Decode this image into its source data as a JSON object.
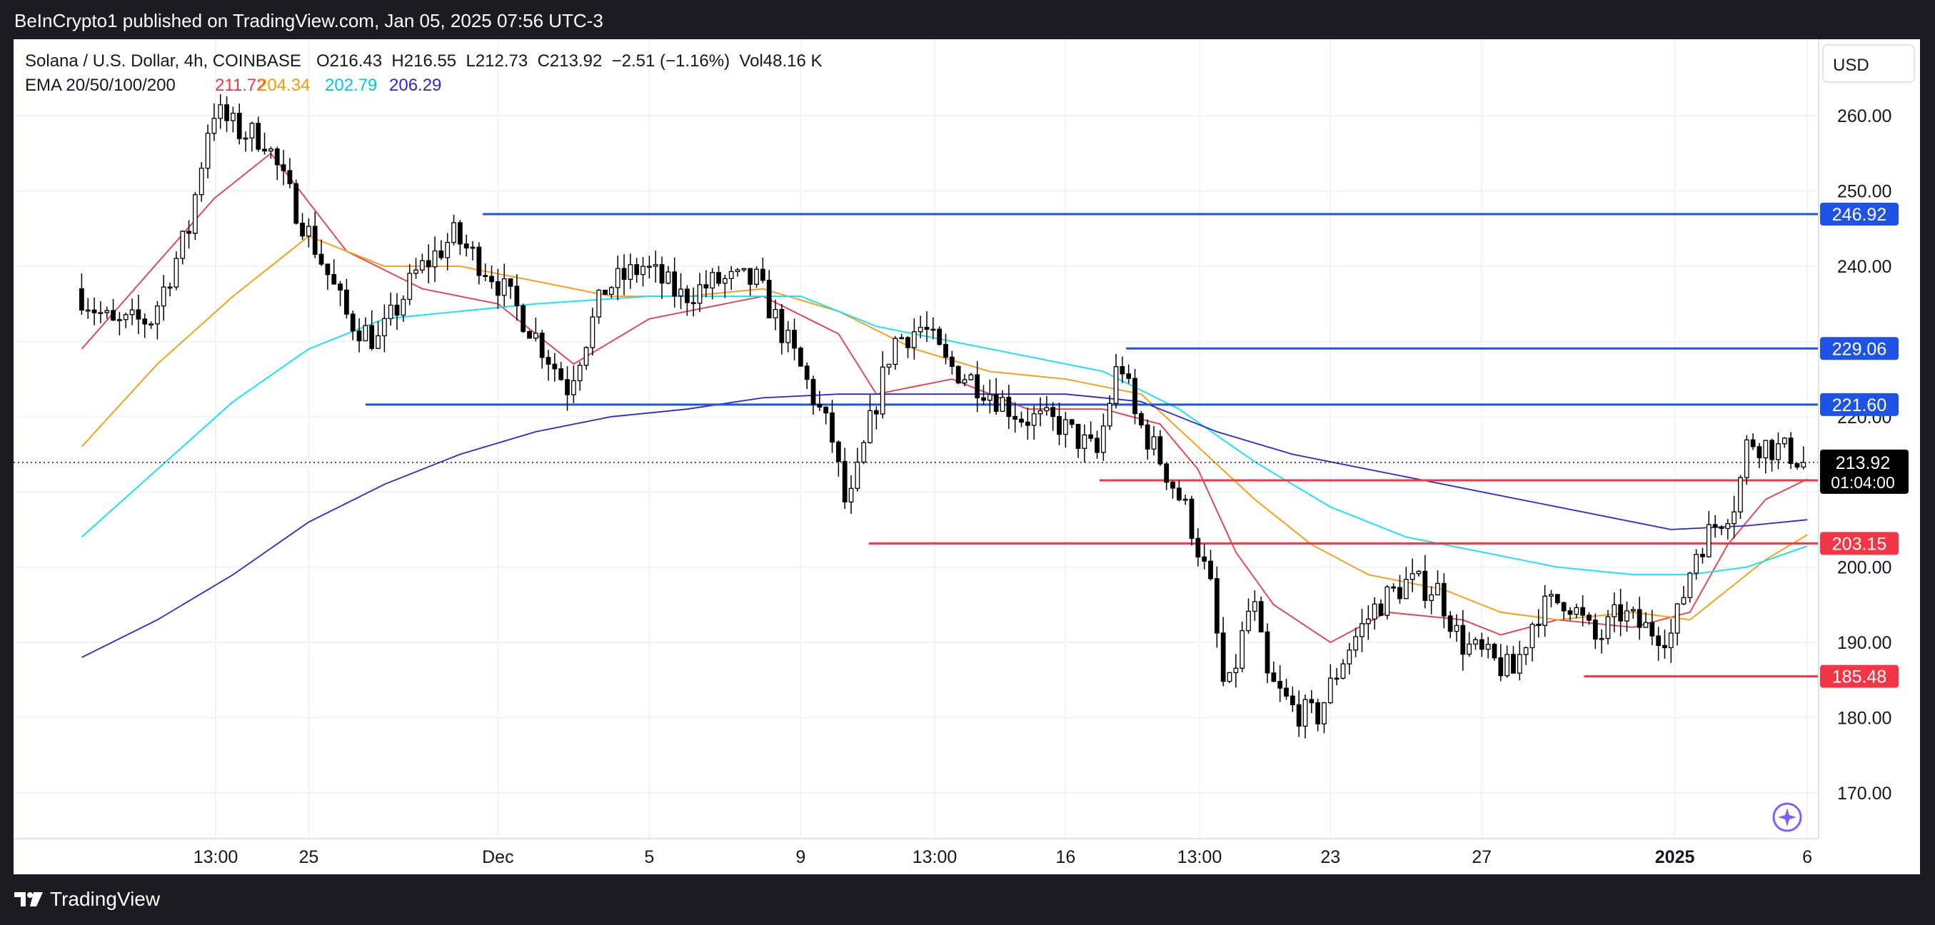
{
  "header": {
    "published_line": "BeInCrypto1 published on TradingView.com, Jan 05, 2025 07:56 UTC-3"
  },
  "legend": {
    "symbol": "Solana / U.S. Dollar, 4h, COINBASE",
    "ohlc": "O216.43  H216.55  L212.73  C213.92  −2.51 (−1.16%)  Vol48.16 K",
    "ema_label": "EMA 20/50/100/200",
    "ema_values": [
      {
        "value": "211.72",
        "color": "#f23645"
      },
      {
        "value": "204.34",
        "color": "#ff9800"
      },
      {
        "value": "202.79",
        "color": "#00e5ff"
      },
      {
        "value": "206.29",
        "color": "#2b26d9"
      }
    ]
  },
  "currency_button": "USD",
  "price_badge": {
    "price": "213.92",
    "countdown": "01:04:00"
  },
  "footer": {
    "brand": "TradingView"
  },
  "colors": {
    "up": "#ffffff",
    "down": "#000000",
    "candle_outline": "#000000",
    "resistance": "#1e53e5",
    "support": "#f23645",
    "ema20": "#f23645",
    "ema50": "#ff9800",
    "ema100": "#00e5ff",
    "ema200": "#2b26d9",
    "grid": "#f0f3fa",
    "axis_text": "#131722",
    "badge_bg": "#000000"
  },
  "chart_data": {
    "type": "candlestick",
    "title": "Solana / U.S. Dollar, 4h, COINBASE",
    "timeframe": "4h",
    "ylim": [
      166,
      268
    ],
    "y_ticks": [
      170,
      180,
      190,
      200,
      210,
      220,
      230,
      240,
      250,
      260
    ],
    "y_tick_labels": [
      "170.00",
      "180.00",
      "190.00",
      "200.00",
      "",
      "220.00",
      "",
      "240.00",
      "250.00",
      "260.00"
    ],
    "x_range_days": [
      0,
      42.1
    ],
    "x_ticks": [
      {
        "label": "13:00",
        "day": 3.54,
        "bold": false
      },
      {
        "label": "25",
        "day": 6.0,
        "bold": false
      },
      {
        "label": "Dec",
        "day": 11.0,
        "bold": false
      },
      {
        "label": "5",
        "day": 15.0,
        "bold": false
      },
      {
        "label": "9",
        "day": 19.0,
        "bold": false
      },
      {
        "label": "13:00",
        "day": 22.54,
        "bold": false
      },
      {
        "label": "16",
        "day": 26.0,
        "bold": false
      },
      {
        "label": "13:00",
        "day": 29.54,
        "bold": false
      },
      {
        "label": "23",
        "day": 33.0,
        "bold": false
      },
      {
        "label": "27",
        "day": 37.0,
        "bold": false
      },
      {
        "label": "2025",
        "day": 42.1,
        "bold": true
      },
      {
        "label": "6",
        "day": 45.6,
        "bold": false
      }
    ],
    "key_points": [
      {
        "day": 0.0,
        "price": 237
      },
      {
        "day": 1.0,
        "price": 232
      },
      {
        "day": 2.0,
        "price": 233
      },
      {
        "day": 3.0,
        "price": 245
      },
      {
        "day": 3.6,
        "price": 261
      },
      {
        "day": 4.3,
        "price": 258
      },
      {
        "day": 5.0,
        "price": 257
      },
      {
        "day": 5.6,
        "price": 250
      },
      {
        "day": 6.3,
        "price": 243
      },
      {
        "day": 7.2,
        "price": 233
      },
      {
        "day": 8.0,
        "price": 230
      },
      {
        "day": 9.0,
        "price": 239
      },
      {
        "day": 10.0,
        "price": 244
      },
      {
        "day": 11.0,
        "price": 239
      },
      {
        "day": 12.0,
        "price": 232
      },
      {
        "day": 13.0,
        "price": 224
      },
      {
        "day": 14.0,
        "price": 237
      },
      {
        "day": 15.0,
        "price": 240
      },
      {
        "day": 16.0,
        "price": 236
      },
      {
        "day": 17.0,
        "price": 238
      },
      {
        "day": 18.0,
        "price": 238
      },
      {
        "day": 19.2,
        "price": 226
      },
      {
        "day": 20.0,
        "price": 217
      },
      {
        "day": 20.4,
        "price": 207
      },
      {
        "day": 21.0,
        "price": 219
      },
      {
        "day": 21.6,
        "price": 230
      },
      {
        "day": 22.4,
        "price": 232
      },
      {
        "day": 23.0,
        "price": 227
      },
      {
        "day": 24.0,
        "price": 224
      },
      {
        "day": 25.0,
        "price": 220
      },
      {
        "day": 26.0,
        "price": 219
      },
      {
        "day": 27.0,
        "price": 215
      },
      {
        "day": 27.6,
        "price": 228
      },
      {
        "day": 28.0,
        "price": 220
      },
      {
        "day": 28.6,
        "price": 215
      },
      {
        "day": 29.4,
        "price": 207
      },
      {
        "day": 30.0,
        "price": 197
      },
      {
        "day": 30.4,
        "price": 182
      },
      {
        "day": 31.1,
        "price": 196
      },
      {
        "day": 31.5,
        "price": 185
      },
      {
        "day": 32.2,
        "price": 181
      },
      {
        "day": 32.8,
        "price": 180
      },
      {
        "day": 33.6,
        "price": 189
      },
      {
        "day": 34.4,
        "price": 195
      },
      {
        "day": 35.2,
        "price": 198
      },
      {
        "day": 36.0,
        "price": 197
      },
      {
        "day": 36.6,
        "price": 190
      },
      {
        "day": 37.6,
        "price": 187
      },
      {
        "day": 38.0,
        "price": 186
      },
      {
        "day": 38.6,
        "price": 194
      },
      {
        "day": 39.4,
        "price": 196
      },
      {
        "day": 40.2,
        "price": 190
      },
      {
        "day": 40.8,
        "price": 194
      },
      {
        "day": 41.4,
        "price": 192
      },
      {
        "day": 42.2,
        "price": 191
      },
      {
        "day": 42.8,
        "price": 202
      },
      {
        "day": 43.4,
        "price": 206
      },
      {
        "day": 43.9,
        "price": 209
      },
      {
        "day": 44.2,
        "price": 217
      },
      {
        "day": 44.8,
        "price": 216
      },
      {
        "day": 45.4,
        "price": 215
      },
      {
        "day": 45.6,
        "price": 214
      }
    ],
    "ema_curves": [
      {
        "name": "EMA 20",
        "color": "#f23645",
        "points": [
          [
            0.0,
            229
          ],
          [
            3.5,
            249
          ],
          [
            5.0,
            255
          ],
          [
            7.0,
            242
          ],
          [
            9.0,
            237
          ],
          [
            11.0,
            235
          ],
          [
            13.0,
            227
          ],
          [
            15.0,
            233
          ],
          [
            18.0,
            236
          ],
          [
            20.0,
            231
          ],
          [
            21.0,
            223
          ],
          [
            23.0,
            225
          ],
          [
            25.0,
            221
          ],
          [
            27.0,
            221
          ],
          [
            28.5,
            219
          ],
          [
            29.5,
            213
          ],
          [
            30.5,
            202
          ],
          [
            31.5,
            195
          ],
          [
            33.0,
            190
          ],
          [
            34.5,
            194
          ],
          [
            36.5,
            193
          ],
          [
            37.5,
            191
          ],
          [
            39.0,
            193
          ],
          [
            41.0,
            192
          ],
          [
            42.5,
            194
          ],
          [
            43.5,
            203
          ],
          [
            44.5,
            209
          ],
          [
            45.6,
            211.7
          ]
        ]
      },
      {
        "name": "EMA 50",
        "color": "#ff9800",
        "points": [
          [
            0.0,
            216
          ],
          [
            2.0,
            227
          ],
          [
            4.0,
            236
          ],
          [
            6.0,
            244
          ],
          [
            8.0,
            240
          ],
          [
            10.0,
            240
          ],
          [
            12.0,
            238
          ],
          [
            14.0,
            236
          ],
          [
            16.0,
            236
          ],
          [
            18.0,
            237
          ],
          [
            20.0,
            234
          ],
          [
            22.0,
            229
          ],
          [
            24.0,
            226
          ],
          [
            26.0,
            225
          ],
          [
            28.0,
            223
          ],
          [
            29.5,
            216
          ],
          [
            31.0,
            209
          ],
          [
            32.5,
            203
          ],
          [
            34.0,
            199
          ],
          [
            36.0,
            197
          ],
          [
            37.5,
            194
          ],
          [
            39.0,
            193
          ],
          [
            41.0,
            194
          ],
          [
            42.5,
            193
          ],
          [
            43.5,
            197
          ],
          [
            44.5,
            201
          ],
          [
            45.6,
            204.3
          ]
        ]
      },
      {
        "name": "EMA 100",
        "color": "#00e5ff",
        "points": [
          [
            0.0,
            204
          ],
          [
            2.0,
            213
          ],
          [
            4.0,
            222
          ],
          [
            6.0,
            229
          ],
          [
            8.0,
            233
          ],
          [
            10.0,
            234
          ],
          [
            12.0,
            235
          ],
          [
            15.0,
            236
          ],
          [
            17.0,
            236
          ],
          [
            19.0,
            236
          ],
          [
            21.0,
            232
          ],
          [
            23.0,
            230
          ],
          [
            25.0,
            228
          ],
          [
            27.0,
            226
          ],
          [
            29.0,
            221
          ],
          [
            31.0,
            214
          ],
          [
            33.0,
            208
          ],
          [
            35.0,
            204
          ],
          [
            37.0,
            202
          ],
          [
            39.0,
            200
          ],
          [
            41.0,
            199
          ],
          [
            42.5,
            199
          ],
          [
            44.0,
            200
          ],
          [
            45.6,
            202.8
          ]
        ]
      },
      {
        "name": "EMA 200",
        "color": "#2b26d9",
        "points": [
          [
            0.0,
            188
          ],
          [
            2.0,
            193
          ],
          [
            4.0,
            199
          ],
          [
            6.0,
            206
          ],
          [
            8.0,
            211
          ],
          [
            10.0,
            215
          ],
          [
            12.0,
            218
          ],
          [
            14.0,
            220
          ],
          [
            16.0,
            221
          ],
          [
            18.0,
            222.5
          ],
          [
            20.0,
            223
          ],
          [
            22.0,
            223
          ],
          [
            24.0,
            223
          ],
          [
            26.0,
            223
          ],
          [
            28.0,
            222
          ],
          [
            30.0,
            218
          ],
          [
            32.0,
            215
          ],
          [
            34.0,
            213
          ],
          [
            36.0,
            211
          ],
          [
            38.0,
            209
          ],
          [
            40.0,
            207
          ],
          [
            42.0,
            205
          ],
          [
            44.0,
            205.5
          ],
          [
            45.6,
            206.3
          ]
        ]
      }
    ],
    "horizontal_levels": [
      {
        "price": 246.92,
        "label": "246.92",
        "kind": "resistance",
        "from_day": 10.6
      },
      {
        "price": 229.06,
        "label": "229.06",
        "kind": "resistance",
        "from_day": 27.6
      },
      {
        "price": 221.6,
        "label": "221.60",
        "kind": "resistance",
        "from_day": 7.5
      },
      {
        "price": 211.54,
        "label": "211.54",
        "kind": "support",
        "from_day": 26.9
      },
      {
        "price": 203.15,
        "label": "203.15",
        "kind": "support",
        "from_day": 20.8
      },
      {
        "price": 185.48,
        "label": "185.48",
        "kind": "support",
        "from_day": 39.7
      }
    ],
    "last_price": 213.92,
    "grid": true,
    "legend_position": "top-left"
  }
}
